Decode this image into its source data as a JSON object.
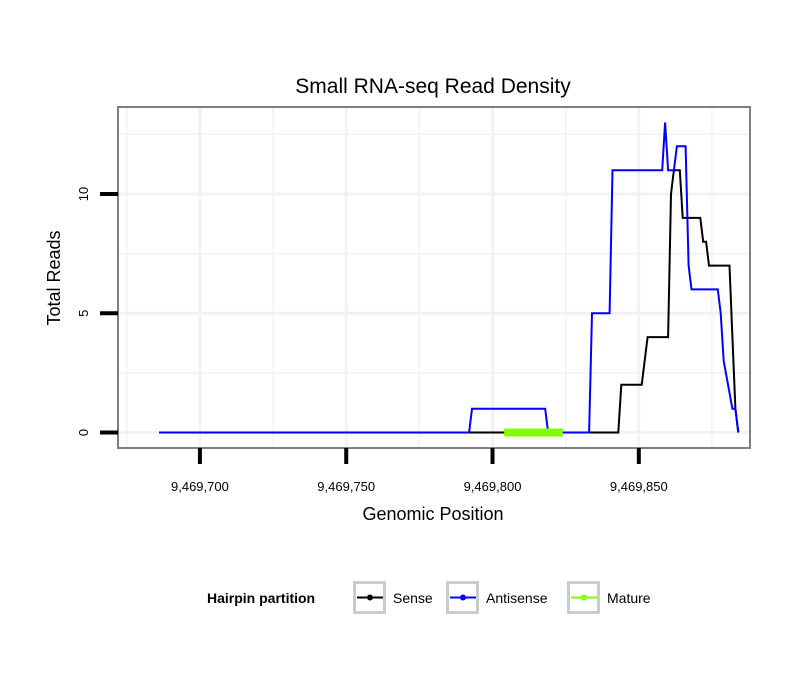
{
  "chart_data": {
    "type": "line",
    "title": "Small RNA-seq Read Density",
    "xlabel": "Genomic Position",
    "ylabel": "Total Reads",
    "xlim": [
      9469672,
      9469888
    ],
    "ylim": [
      -0.65,
      13.65
    ],
    "x_ticks": [
      9469700,
      9469750,
      9469800,
      9469850
    ],
    "x_tick_labels": [
      "9,469,700",
      "9,469,750",
      "9,469,800",
      "9,469,850"
    ],
    "y_ticks": [
      0,
      5,
      10
    ],
    "y_tick_labels": [
      "0",
      "5",
      "10"
    ],
    "grid": true,
    "legend": {
      "title": "Hairpin partition",
      "position": "bottom",
      "entries": [
        "Sense",
        "Antisense",
        "Mature"
      ]
    },
    "series": [
      {
        "name": "Sense",
        "color": "#000000",
        "x": [
          9469686,
          9469843,
          9469844,
          9469851,
          9469853,
          9469860,
          9469861,
          9469862,
          9469864,
          9469865,
          9469866,
          9469871,
          9469872,
          9469873,
          9469874,
          9469880,
          9469881,
          9469882,
          9469883,
          9469884
        ],
        "y": [
          0,
          0,
          2,
          2,
          4,
          4,
          10,
          11,
          11,
          9,
          9,
          9,
          8,
          8,
          7,
          7,
          7,
          4,
          1,
          0
        ]
      },
      {
        "name": "Antisense",
        "color": "#0000ff",
        "x": [
          9469686,
          9469792,
          9469793,
          9469818,
          9469819,
          9469833,
          9469834,
          9469840,
          9469841,
          9469858,
          9469859,
          9469860,
          9469862,
          9469863,
          9469866,
          9469867,
          9469868,
          9469877,
          9469878,
          9469879,
          9469882,
          9469883,
          9469884
        ],
        "y": [
          0,
          0,
          1,
          1,
          0,
          0,
          5,
          5,
          11,
          11,
          13,
          11,
          11,
          12,
          12,
          7,
          6,
          6,
          5,
          3,
          1,
          1,
          0
        ]
      },
      {
        "name": "Mature",
        "color": "#7fff00",
        "x": [
          9469804,
          9469824
        ],
        "y": [
          0,
          0
        ]
      }
    ]
  }
}
